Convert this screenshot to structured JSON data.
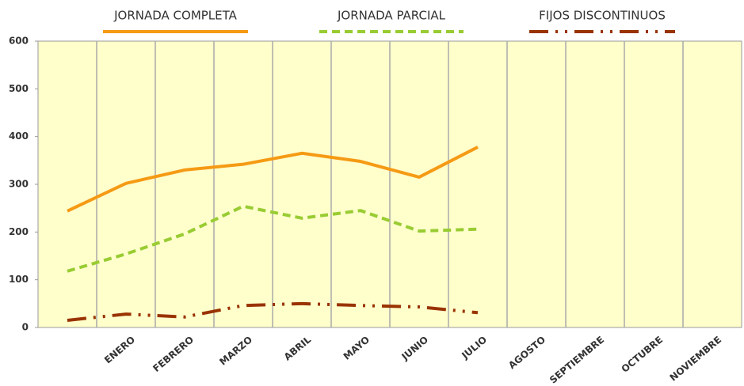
{
  "chart_data": {
    "type": "line",
    "categories": [
      null,
      "ENERO",
      "FEBRERO",
      "MARZO",
      "ABRIL",
      "MAYO",
      "JUNIO",
      "JULIO",
      "AGOSTO",
      "SEPTIEMBRE",
      "OCTUBRE",
      "NOVIEMBRE"
    ],
    "series": [
      {
        "name": "JORNADA COMPLETA",
        "color": "#f59a14",
        "dash": "solid",
        "values": [
          244,
          302,
          330,
          342,
          365,
          348,
          315,
          378,
          null,
          null,
          null,
          null
        ]
      },
      {
        "name": "JORNADA PARCIAL",
        "color": "#99cc33",
        "dash": "dashed",
        "values": [
          118,
          154,
          196,
          254,
          229,
          245,
          202,
          206,
          null,
          null,
          null,
          null
        ]
      },
      {
        "name": "FIJOS DISCONTINUOS",
        "color": "#993300",
        "dash": "dash-dot-dot",
        "values": [
          15,
          28,
          22,
          46,
          50,
          46,
          43,
          31,
          null,
          null,
          null,
          null
        ]
      }
    ],
    "ylim": [
      0,
      600
    ],
    "yticks": [
      0,
      100,
      200,
      300,
      400,
      500,
      600
    ]
  }
}
